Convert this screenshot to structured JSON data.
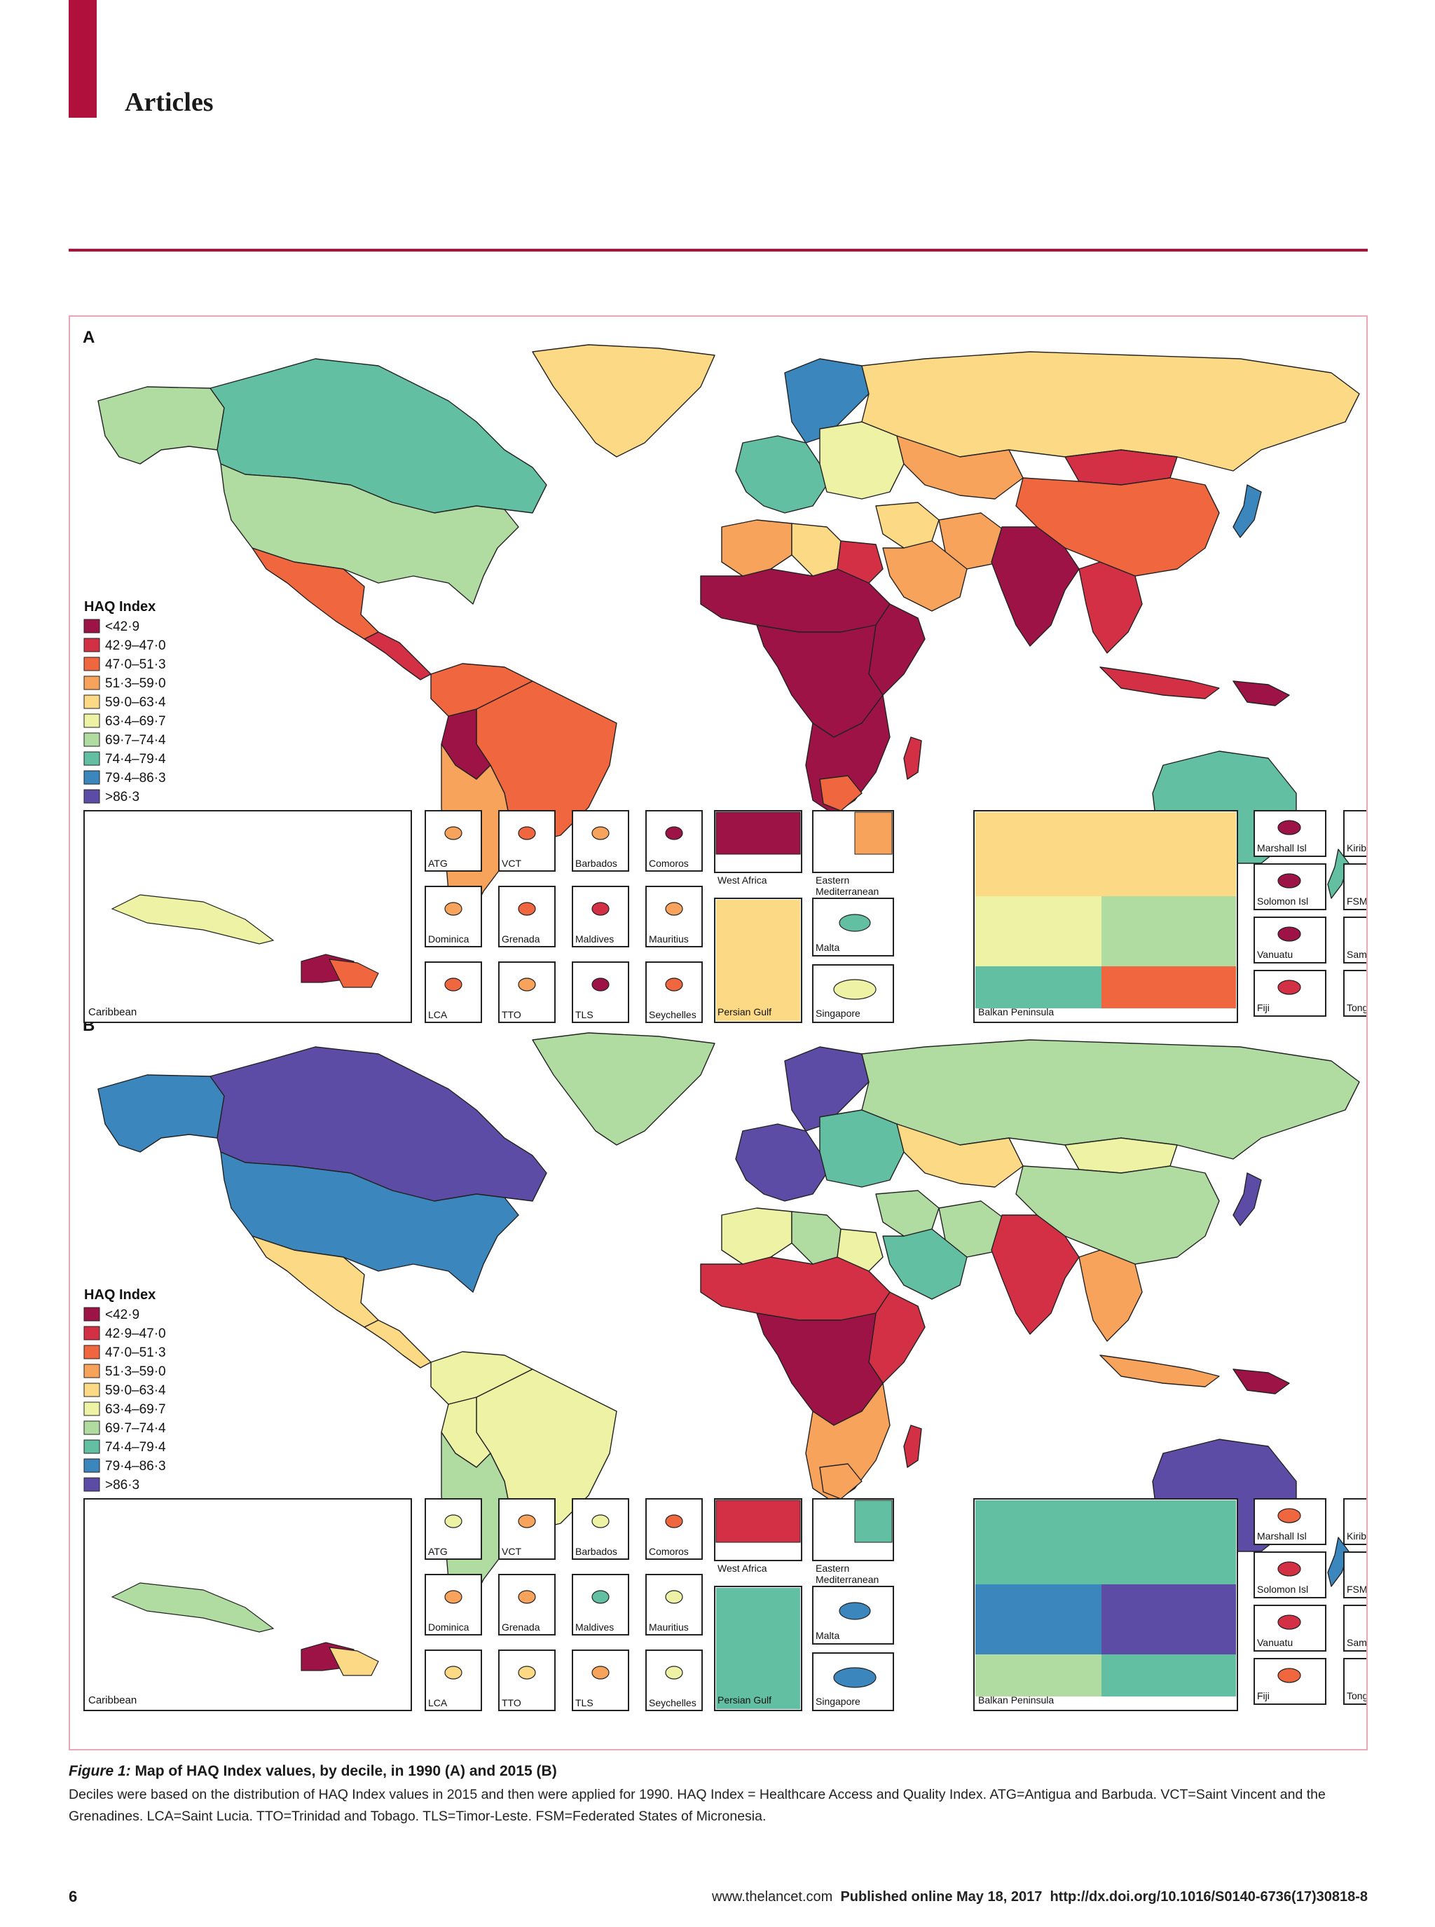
{
  "header": {
    "section": "Articles"
  },
  "legend": {
    "title": "HAQ Index",
    "items": [
      {
        "label": "<42·9",
        "color": "#9e1346"
      },
      {
        "label": "42·9–47·0",
        "color": "#d33046"
      },
      {
        "label": "47·0–51·3",
        "color": "#f0663e"
      },
      {
        "label": "51·3–59·0",
        "color": "#f8a35c"
      },
      {
        "label": "59·0–63·4",
        "color": "#fcd985"
      },
      {
        "label": "63·4–69·7",
        "color": "#eef2a4"
      },
      {
        "label": "69·7–74·4",
        "color": "#b1dca1"
      },
      {
        "label": "74·4–79·4",
        "color": "#63bfa1"
      },
      {
        "label": "79·4–86·3",
        "color": "#3a86bd"
      },
      {
        "label": ">86·3",
        "color": "#5c4ca5"
      }
    ]
  },
  "panels": [
    {
      "letter": "A",
      "year": 1990
    },
    {
      "letter": "B",
      "year": 2015
    }
  ],
  "insets": {
    "caribbean": "Caribbean",
    "small": [
      "ATG",
      "VCT",
      "Barbados",
      "Comoros",
      "Dominica",
      "Grenada",
      "Maldives",
      "Mauritius",
      "LCA",
      "TTO",
      "TLS",
      "Seychelles"
    ],
    "west_africa": "West Africa",
    "eastern_med": [
      "Eastern",
      "Mediterranean"
    ],
    "persian_gulf": "Persian Gulf",
    "malta": "Malta",
    "singapore": "Singapore",
    "balkan": "Balkan Peninsula",
    "pacific": [
      "Marshall Isl",
      "Kiribati",
      "Solomon Isl",
      "FSM",
      "Vanuatu",
      "Samoa",
      "Fiji",
      "Tonga"
    ]
  },
  "regions": {
    "A": {
      "canada": 7,
      "alaska": 6,
      "greenland": 4,
      "usa": 6,
      "mexico": 2,
      "central_america": 1,
      "northern_sa": 2,
      "brazil": 2,
      "bolivia": 0,
      "southern_sa": 3,
      "europe_w": 7,
      "scandinavia": 8,
      "europe_e": 5,
      "russia": 4,
      "kazakhstan": 3,
      "north_africa": 3,
      "egypt": 1,
      "libya": 4,
      "sahel": 0,
      "central_africa": 0,
      "east_africa": 0,
      "southern_africa": 0,
      "south_africa_core": 2,
      "madagascar": 1,
      "middle_east": 4,
      "saudi": 3,
      "iran": 3,
      "india": 0,
      "china": 2,
      "mongolia": 1,
      "se_asia": 1,
      "indonesia": 1,
      "png": 0,
      "japan": 8,
      "australia": 7,
      "nz": 7
    },
    "B": {
      "canada": 9,
      "alaska": 8,
      "greenland": 6,
      "usa": 8,
      "mexico": 4,
      "central_america": 4,
      "northern_sa": 5,
      "brazil": 5,
      "bolivia": 5,
      "southern_sa": 6,
      "europe_w": 9,
      "scandinavia": 9,
      "europe_e": 7,
      "russia": 6,
      "kazakhstan": 4,
      "north_africa": 5,
      "egypt": 5,
      "libya": 6,
      "sahel": 1,
      "central_africa": 0,
      "east_africa": 1,
      "southern_africa": 3,
      "south_africa_core": 3,
      "madagascar": 1,
      "middle_east": 6,
      "saudi": 7,
      "iran": 6,
      "india": 1,
      "china": 6,
      "mongolia": 5,
      "se_asia": 3,
      "indonesia": 3,
      "png": 0,
      "japan": 9,
      "australia": 9,
      "nz": 8
    }
  },
  "inset_colors": {
    "A": {
      "ATG": 3,
      "VCT": 2,
      "Barbados": 3,
      "Comoros": 0,
      "Dominica": 3,
      "Grenada": 2,
      "Maldives": 1,
      "Mauritius": 3,
      "LCA": 2,
      "TTO": 3,
      "TLS": 0,
      "Seychelles": 2,
      "Marshall Isl": 0,
      "Kiribati": 0,
      "Solomon Isl": 0,
      "FSM": 0,
      "Vanuatu": 0,
      "Samoa": 2,
      "Fiji": 1,
      "Tonga": 2,
      "Malta": 7,
      "Singapore": 5
    },
    "B": {
      "ATG": 5,
      "VCT": 3,
      "Barbados": 5,
      "Comoros": 2,
      "Dominica": 3,
      "Grenada": 3,
      "Maldives": 7,
      "Mauritius": 5,
      "LCA": 4,
      "TTO": 4,
      "TLS": 3,
      "Seychelles": 5,
      "Marshall Isl": 2,
      "Kiribati": 1,
      "Solomon Isl": 1,
      "FSM": 3,
      "Vanuatu": 1,
      "Samoa": 4,
      "Fiji": 2,
      "Tonga": 4,
      "Malta": 8,
      "Singapore": 8
    }
  },
  "caption": {
    "title": "Figure 1:",
    "title_rest": " Map of HAQ Index values, by decile, in 1990 (A) and 2015 (B)",
    "body": "Deciles were based on the distribution of HAQ Index values in 2015 and then were applied for 1990. HAQ Index = Healthcare Access and Quality Index. ATG=Antigua and Barbuda. VCT=Saint Vincent and the Grenadines. LCA=Saint Lucia. TTO=Trinidad and Tobago. TLS=Timor-Leste. FSM=Federated States of Micronesia."
  },
  "footer": {
    "page": "6",
    "site": "www.thelancet.com",
    "published": "Published online May 18, 2017",
    "doi": "http://dx.doi.org/10.1016/S0140-6736(17)30818-8"
  }
}
